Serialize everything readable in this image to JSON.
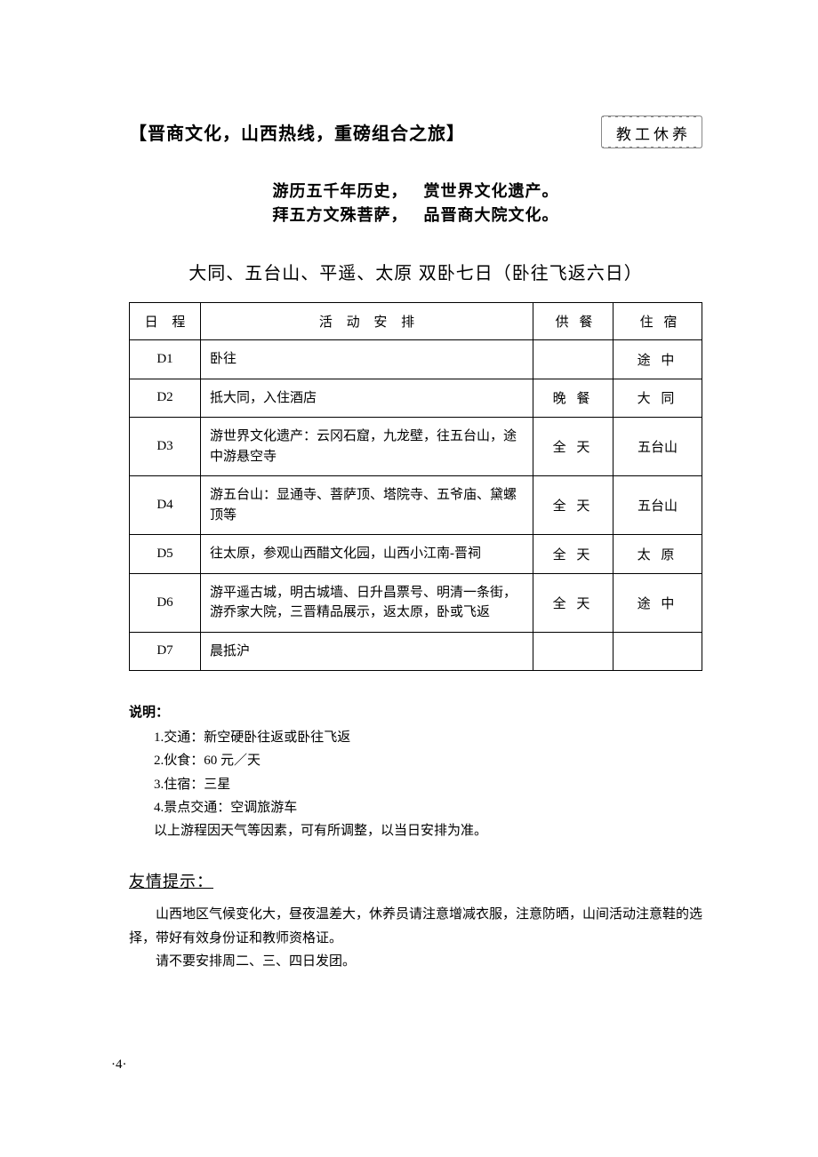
{
  "header": {
    "title": "【晋商文化，山西热线，重磅组合之旅】",
    "badge": "教工休养"
  },
  "poem": {
    "line1a": "游历五千年历史，",
    "line1b": "赏世界文化遗产。",
    "line2a": "拜五方文殊菩萨，",
    "line2b": "品晋商大院文化。"
  },
  "subtitle": "大同、五台山、平遥、太原 双卧七日（卧往飞返六日）",
  "table": {
    "columns": {
      "day": "日 程",
      "activity": "活 动 安 排",
      "meal": "供 餐",
      "stay": "住 宿"
    },
    "rows": [
      {
        "day": "D1",
        "activity": "卧往",
        "meal": "",
        "stay": "途 中",
        "stay_tight": false
      },
      {
        "day": "D2",
        "activity": "抵大同，入住酒店",
        "meal": "晚 餐",
        "stay": "大 同",
        "stay_tight": false
      },
      {
        "day": "D3",
        "activity": "游世界文化遗产：云冈石窟，九龙壁，往五台山，途中游悬空寺",
        "meal": "全 天",
        "stay": "五台山",
        "stay_tight": true
      },
      {
        "day": "D4",
        "activity": "游五台山：显通寺、菩萨顶、塔院寺、五爷庙、黛螺顶等",
        "meal": "全 天",
        "stay": "五台山",
        "stay_tight": true
      },
      {
        "day": "D5",
        "activity": "往太原，参观山西醋文化园，山西小江南-晋祠",
        "meal": "全 天",
        "stay": "太 原",
        "stay_tight": false
      },
      {
        "day": "D6",
        "activity": "游平遥古城，明古城墙、日升昌票号、明清一条街，游乔家大院，三晋精品展示，返太原，卧或飞返",
        "meal": "全 天",
        "stay": "途 中",
        "stay_tight": false
      },
      {
        "day": "D7",
        "activity": "晨抵沪",
        "meal": "",
        "stay": "",
        "stay_tight": false
      }
    ]
  },
  "notes": {
    "heading": "说明：",
    "items": [
      "1.交通：新空硬卧往返或卧往飞返",
      "2.伙食：60 元／天",
      "3.住宿：三星",
      "4.景点交通：空调旅游车",
      "以上游程因天气等因素，可有所调整，以当日安排为准。"
    ]
  },
  "tips": {
    "heading": "友情提示：",
    "paragraphs": [
      "山西地区气候变化大，昼夜温差大，休养员请注意增减衣服，注意防晒，山间活动注意鞋的选择，带好有效身份证和教师资格证。",
      "请不要安排周二、三、四日发团。"
    ]
  },
  "page_number": "·4·",
  "style": {
    "page_bg": "#ffffff",
    "text_color": "#000000",
    "border_color": "#000000",
    "badge_border": "#888888",
    "title_font": "KaiTi",
    "body_font": "SimSun",
    "heading_font": "SimHei",
    "title_fontsize": 20,
    "subtitle_fontsize": 20,
    "poem_fontsize": 18,
    "table_fontsize": 15,
    "notes_fontsize": 15,
    "tips_heading_fontsize": 18,
    "col_widths": {
      "day": 80,
      "meal": 90,
      "stay": 100
    }
  }
}
